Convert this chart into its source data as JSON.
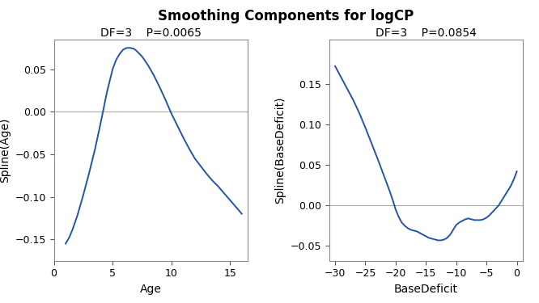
{
  "title": "Smoothing Components for logCP",
  "title_fontsize": 12,
  "title_fontweight": "bold",
  "plot1": {
    "subtitle": "DF=3    P=0.0065",
    "xlabel": "Age",
    "ylabel": "Spline(Age)",
    "xlim": [
      0,
      16.5
    ],
    "ylim": [
      -0.175,
      0.085
    ],
    "yticks": [
      -0.15,
      -0.1,
      -0.05,
      0.0,
      0.05
    ],
    "xticks": [
      0,
      5,
      10,
      15
    ],
    "line_color": "#2255aa",
    "x": [
      1.0,
      1.3,
      1.6,
      2.0,
      2.5,
      3.0,
      3.5,
      4.0,
      4.5,
      5.0,
      5.3,
      5.6,
      5.9,
      6.2,
      6.5,
      6.8,
      7.0,
      7.5,
      8.0,
      8.5,
      9.0,
      9.5,
      10.0,
      10.5,
      11.0,
      11.5,
      12.0,
      12.5,
      13.0,
      13.5,
      14.0,
      14.5,
      15.0,
      15.5,
      16.0
    ],
    "y": [
      -0.155,
      -0.148,
      -0.138,
      -0.122,
      -0.098,
      -0.072,
      -0.044,
      -0.012,
      0.022,
      0.05,
      0.061,
      0.068,
      0.073,
      0.075,
      0.075,
      0.074,
      0.072,
      0.065,
      0.055,
      0.043,
      0.029,
      0.014,
      -0.002,
      -0.016,
      -0.03,
      -0.043,
      -0.055,
      -0.064,
      -0.073,
      -0.081,
      -0.088,
      -0.096,
      -0.104,
      -0.112,
      -0.12
    ]
  },
  "plot2": {
    "subtitle": "DF=3    P=0.0854",
    "xlabel": "BaseDeficit",
    "ylabel": "Spline(BaseDeficit)",
    "xlim": [
      -31,
      1
    ],
    "ylim": [
      -0.068,
      0.205
    ],
    "yticks": [
      -0.05,
      0.0,
      0.05,
      0.1,
      0.15
    ],
    "xticks": [
      -30,
      -25,
      -20,
      -15,
      -10,
      -5,
      0
    ],
    "line_color": "#2255aa",
    "x": [
      -30.0,
      -29.0,
      -28.0,
      -27.0,
      -26.5,
      -26.0,
      -25.5,
      -25.0,
      -24.0,
      -23.0,
      -22.0,
      -21.0,
      -20.5,
      -20.0,
      -19.5,
      -19.0,
      -18.5,
      -18.0,
      -17.5,
      -17.0,
      -16.5,
      -16.0,
      -15.5,
      -15.0,
      -14.5,
      -14.0,
      -13.5,
      -13.0,
      -12.5,
      -12.0,
      -11.5,
      -11.0,
      -10.5,
      -10.0,
      -9.5,
      -9.0,
      -8.5,
      -8.0,
      -7.5,
      -7.0,
      -6.5,
      -6.0,
      -5.5,
      -5.0,
      -4.5,
      -4.0,
      -3.5,
      -3.0,
      -2.5,
      -2.0,
      -1.5,
      -1.0,
      -0.5,
      0.0
    ],
    "y": [
      0.172,
      0.158,
      0.144,
      0.13,
      0.122,
      0.114,
      0.105,
      0.096,
      0.077,
      0.058,
      0.038,
      0.018,
      0.007,
      -0.005,
      -0.014,
      -0.021,
      -0.025,
      -0.028,
      -0.03,
      -0.031,
      -0.032,
      -0.034,
      -0.036,
      -0.038,
      -0.04,
      -0.041,
      -0.042,
      -0.043,
      -0.043,
      -0.042,
      -0.04,
      -0.036,
      -0.03,
      -0.024,
      -0.021,
      -0.019,
      -0.017,
      -0.016,
      -0.017,
      -0.018,
      -0.018,
      -0.018,
      -0.017,
      -0.015,
      -0.012,
      -0.008,
      -0.004,
      0.0,
      0.006,
      0.012,
      0.018,
      0.024,
      0.032,
      0.042
    ]
  },
  "bg_color": "#ffffff",
  "panel_bg": "#ffffff",
  "grid_color": "#aaaaaa",
  "tick_color": "#555555",
  "label_fontsize": 10,
  "subtitle_fontsize": 10,
  "tick_fontsize": 9,
  "linewidth": 1.4
}
